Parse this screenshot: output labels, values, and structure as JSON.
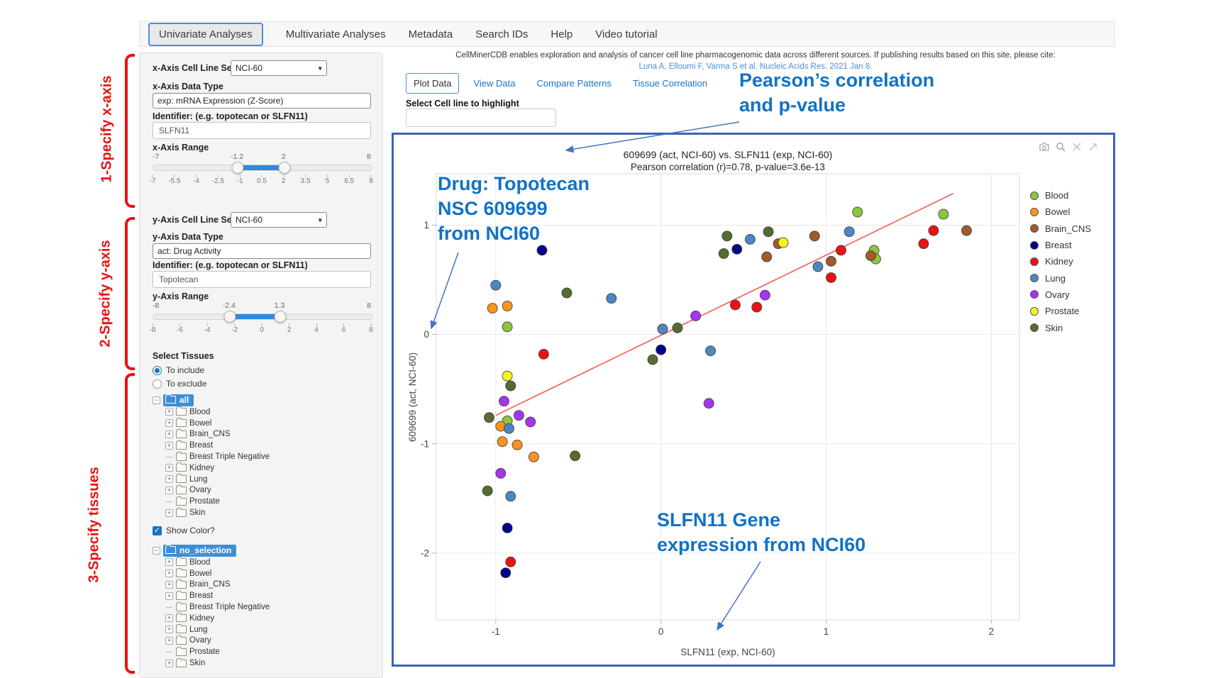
{
  "nav": {
    "tabs": [
      {
        "label": "Univariate Analyses",
        "active": true
      },
      {
        "label": "Multivariate Analyses",
        "active": false
      },
      {
        "label": "Metadata",
        "active": false
      },
      {
        "label": "Search IDs",
        "active": false
      },
      {
        "label": "Help",
        "active": false
      },
      {
        "label": "Video tutorial",
        "active": false
      }
    ]
  },
  "steps": {
    "step1": "1-Specify x-axis",
    "step2": "2-Specify y-axis",
    "step3": "3-Specify tissues"
  },
  "sidebar": {
    "x_cell_line_set_label": "x-Axis Cell Line Set",
    "x_cell_line_set_value": "NCI-60",
    "x_data_type_label": "x-Axis Data Type",
    "x_data_type_value": "exp: mRNA Expression (Z-Score)",
    "x_identifier_label": "Identifier: (e.g. topotecan or SLFN11)",
    "x_identifier_value": "SLFN11",
    "x_range_label": "x-Axis Range",
    "x_slider": {
      "min": -7,
      "max": 8,
      "handle1": -1.2,
      "handle2": 2,
      "min_label": "-7",
      "max_label": "8",
      "handle1_label": "-1.2",
      "handle2_label": "2",
      "ticks": [
        "-7",
        "-5.5",
        "-4",
        "-2.5",
        "-1",
        "0.5",
        "2",
        "3.5",
        "5",
        "6.5",
        "8"
      ]
    },
    "y_cell_line_set_label": "y-Axis Cell Line Set",
    "y_cell_line_set_value": "NCI-60",
    "y_data_type_label": "y-Axis Data Type",
    "y_data_type_value": "act: Drug Activity",
    "y_identifier_label": "Identifier: (e.g. topotecan or SLFN11)",
    "y_identifier_value": "Topotecan",
    "y_range_label": "y-Axis Range",
    "y_slider": {
      "min": -8,
      "max": 8,
      "handle1": -2.4,
      "handle2": 1.3,
      "min_label": "-8",
      "max_label": "8",
      "handle1_label": "-2.4",
      "handle2_label": "1.3",
      "ticks": [
        "-8",
        "-6",
        "-4",
        "-2",
        "0",
        "2",
        "4",
        "6",
        "8"
      ]
    },
    "select_tissues_label": "Select Tissues",
    "radio_include_label": "To include",
    "radio_exclude_label": "To exclude",
    "include_selected": true,
    "show_color_label": "Show Color?",
    "show_color_checked": true,
    "tissue_tree_include": {
      "root": "all",
      "children": [
        {
          "label": "Blood",
          "expandable": true
        },
        {
          "label": "Bowel",
          "expandable": true
        },
        {
          "label": "Brain_CNS",
          "expandable": true
        },
        {
          "label": "Breast",
          "expandable": true
        },
        {
          "label": "Breast Triple Negative",
          "expandable": false
        },
        {
          "label": "Kidney",
          "expandable": true
        },
        {
          "label": "Lung",
          "expandable": true
        },
        {
          "label": "Ovary",
          "expandable": true
        },
        {
          "label": "Prostate",
          "expandable": false
        },
        {
          "label": "Skin",
          "expandable": true
        }
      ]
    },
    "tissue_tree_color": {
      "root": "no_selection",
      "children": [
        {
          "label": "Blood",
          "expandable": true
        },
        {
          "label": "Bowel",
          "expandable": true
        },
        {
          "label": "Brain_CNS",
          "expandable": true
        },
        {
          "label": "Breast",
          "expandable": true
        },
        {
          "label": "Breast Triple Negative",
          "expandable": false
        },
        {
          "label": "Kidney",
          "expandable": true
        },
        {
          "label": "Lung",
          "expandable": true
        },
        {
          "label": "Ovary",
          "expandable": true
        },
        {
          "label": "Prostate",
          "expandable": false
        },
        {
          "label": "Skin",
          "expandable": true
        }
      ]
    }
  },
  "main": {
    "citation_text": "CellMinerCDB enables exploration and analysis of cancer cell line pharmacogenomic data across different sources. If publishing results based on this site, please cite:",
    "citation_link": "Luna A, Elloumi F, Varma S et al. Nucleic Acids Res. 2021 Jan 8.",
    "tabs": [
      {
        "label": "Plot Data",
        "active": true
      },
      {
        "label": "View Data",
        "active": false
      },
      {
        "label": "Compare Patterns",
        "active": false
      },
      {
        "label": "Tissue Correlation",
        "active": false
      }
    ],
    "highlight_label": "Select Cell line to highlight",
    "highlight_value": "",
    "modebar_icons": [
      "camera-icon",
      "zoom-icon",
      "pan-icon",
      "reset-axes-icon"
    ]
  },
  "callouts": {
    "pearson": [
      "Pearson’s correlation",
      "and p-value"
    ],
    "drug": [
      "Drug: Topotecan",
      "NSC 609699",
      "from NCI60"
    ],
    "gene": [
      "SLFN11 Gene",
      "expression from NCI60"
    ]
  },
  "colors": {
    "panel_border": "#3b62b4",
    "annotation_blue": "#1272c6",
    "step_red": "#e81212",
    "link_blue": "#4a90d9",
    "tab_active_border": "#4a90d9",
    "tree_highlight": "#3f8fd6",
    "trendline": "#fc5a50"
  },
  "chart_data": {
    "type": "scatter",
    "title": "609699 (act, NCI-60) vs. SLFN11 (exp, NCI-60)",
    "subtitle": "Pearson correlation (r)=0.78, p-value=3.6e-13",
    "xlabel": "SLFN11 (exp, NCI-60)",
    "ylabel": "609699 (act, NCI-60)",
    "xlim": [
      -1.36,
      2.17
    ],
    "ylim": [
      -2.61,
      1.47
    ],
    "xticks": [
      -1,
      0,
      1,
      2
    ],
    "yticks": [
      1,
      0,
      -1,
      -2
    ],
    "grid": true,
    "legend_position": "right",
    "trendline": {
      "x1": -1.0,
      "y1": -0.74,
      "x2": 1.77,
      "y2": 1.29
    },
    "series": [
      {
        "name": "Blood",
        "color": "#8cc63e",
        "points": [
          [
            -0.93,
            0.07
          ],
          [
            -0.93,
            -0.79
          ],
          [
            1.19,
            1.12
          ],
          [
            1.29,
            0.77
          ],
          [
            1.3,
            0.69
          ],
          [
            1.71,
            1.1
          ]
        ]
      },
      {
        "name": "Bowel",
        "color": "#f7941e",
        "points": [
          [
            -1.02,
            0.24
          ],
          [
            -0.93,
            0.26
          ],
          [
            -0.97,
            -0.84
          ],
          [
            -0.96,
            -0.98
          ],
          [
            -0.87,
            -1.01
          ],
          [
            -0.77,
            -1.12
          ]
        ]
      },
      {
        "name": "Brain_CNS",
        "color": "#a05a2c",
        "points": [
          [
            0.64,
            0.71
          ],
          [
            0.71,
            0.83
          ],
          [
            0.93,
            0.9
          ],
          [
            1.03,
            0.67
          ],
          [
            1.27,
            0.72
          ],
          [
            1.85,
            0.95
          ]
        ]
      },
      {
        "name": "Breast",
        "color": "#00008b",
        "points": [
          [
            -0.72,
            0.77
          ],
          [
            0.0,
            -0.14
          ],
          [
            0.46,
            0.78
          ],
          [
            -0.93,
            -1.77
          ],
          [
            -0.94,
            -2.18
          ]
        ]
      },
      {
        "name": "Kidney",
        "color": "#ee1111",
        "points": [
          [
            -0.71,
            -0.18
          ],
          [
            0.45,
            0.27
          ],
          [
            0.58,
            0.25
          ],
          [
            1.03,
            0.52
          ],
          [
            1.09,
            0.77
          ],
          [
            1.59,
            0.83
          ],
          [
            1.65,
            0.95
          ],
          [
            -0.91,
            -2.08
          ]
        ]
      },
      {
        "name": "Lung",
        "color": "#4e87c0",
        "points": [
          [
            -1.0,
            0.45
          ],
          [
            -0.3,
            0.33
          ],
          [
            0.01,
            0.05
          ],
          [
            0.3,
            -0.15
          ],
          [
            0.54,
            0.87
          ],
          [
            0.95,
            0.62
          ],
          [
            1.14,
            0.94
          ],
          [
            -0.92,
            -0.86
          ],
          [
            -0.91,
            -1.48
          ]
        ]
      },
      {
        "name": "Ovary",
        "color": "#a435ee",
        "points": [
          [
            0.21,
            0.17
          ],
          [
            0.63,
            0.36
          ],
          [
            -0.95,
            -0.61
          ],
          [
            -0.86,
            -0.74
          ],
          [
            -0.79,
            -0.8
          ],
          [
            -0.97,
            -1.27
          ],
          [
            0.29,
            -0.63
          ]
        ]
      },
      {
        "name": "Prostate",
        "color": "#f5f51e",
        "points": [
          [
            0.74,
            0.84
          ],
          [
            -0.93,
            -0.38
          ]
        ]
      },
      {
        "name": "Skin",
        "color": "#556b2f",
        "points": [
          [
            -0.57,
            0.38
          ],
          [
            0.38,
            0.74
          ],
          [
            0.4,
            0.9
          ],
          [
            0.65,
            0.94
          ],
          [
            0.1,
            0.06
          ],
          [
            -0.05,
            -0.23
          ],
          [
            -0.91,
            -0.47
          ],
          [
            -1.04,
            -0.76
          ],
          [
            -0.52,
            -1.11
          ],
          [
            -1.05,
            -1.43
          ]
        ]
      }
    ]
  }
}
